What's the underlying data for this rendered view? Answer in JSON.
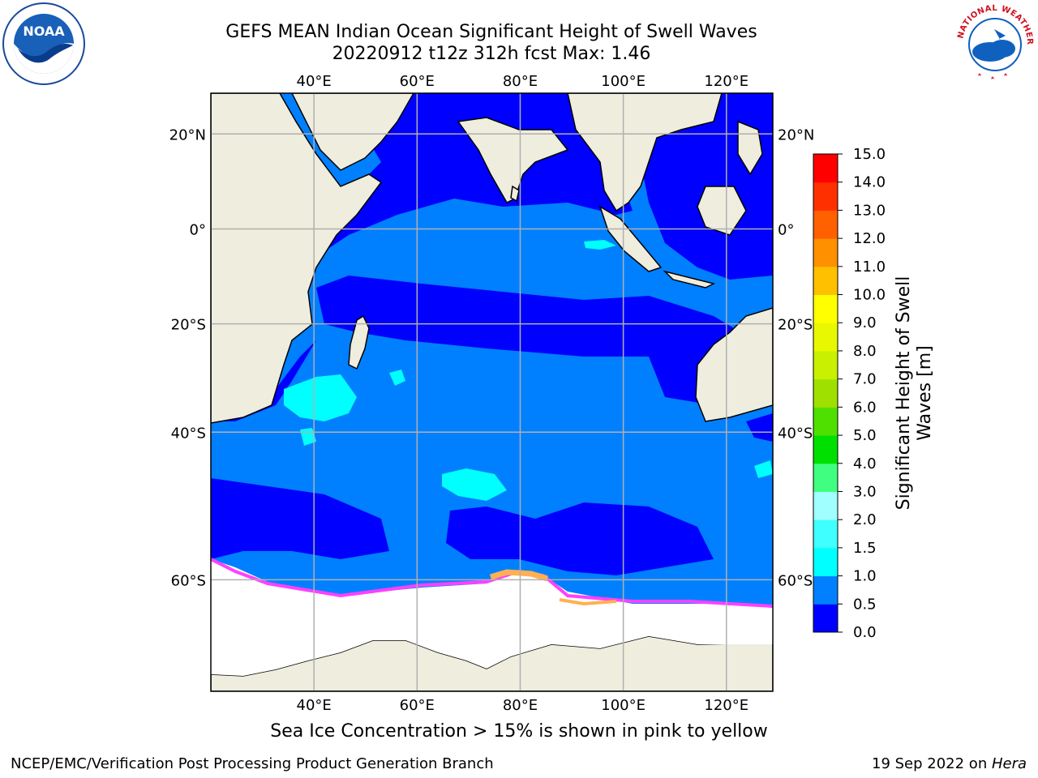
{
  "title": {
    "line1": "GEFS MEAN Indian Ocean Significant Height of Swell Waves",
    "line2": "20220912 t12z 312h fcst   Max: 1.46"
  },
  "map": {
    "lon_ticks": [
      "40°E",
      "60°E",
      "80°E",
      "100°E",
      "120°E"
    ],
    "lat_ticks": [
      "20°N",
      "0°",
      "20°S",
      "40°S",
      "60°S"
    ],
    "lon_range": [
      20,
      129
    ],
    "lat_range": [
      -70,
      28
    ],
    "colors": {
      "land": "#eeedde",
      "ice_edge": "#ff40ff",
      "ice_warm": "#ffb050",
      "grid": "#b0b0b0"
    }
  },
  "colorbar": {
    "title_line1": "Significant Height of Swell",
    "title_line2": "Waves [m]",
    "tick_labels": [
      "0.0",
      "0.5",
      "1.0",
      "1.5",
      "2.0",
      "3.0",
      "4.0",
      "5.0",
      "6.0",
      "7.0",
      "8.0",
      "9.0",
      "10.0",
      "11.0",
      "12.0",
      "13.0",
      "14.0",
      "15.0"
    ],
    "colors": [
      "#0000ff",
      "#0080ff",
      "#00ffff",
      "#40ffff",
      "#a0ffff",
      "#40ff80",
      "#00e000",
      "#50e000",
      "#a0e000",
      "#c8f000",
      "#e8f800",
      "#ffff00",
      "#ffc000",
      "#ff9000",
      "#ff6000",
      "#ff3000",
      "#ff0000"
    ]
  },
  "note": "Sea Ice Concentration > 15% is shown in pink to yellow",
  "footer": {
    "left": "NCEP/EMC/Verification Post Processing Product Generation Branch",
    "right_date": "19 Sep 2022 on ",
    "right_machine": "Hera"
  },
  "logos": {
    "noaa_text": "NOAA",
    "nws_text": "NATIONAL WEATHER SERVICE"
  }
}
